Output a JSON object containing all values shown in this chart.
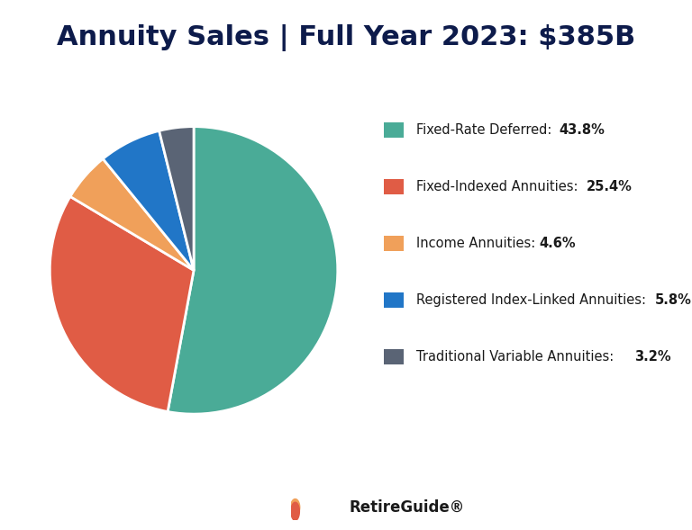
{
  "title": "Annuity Sales | Full Year 2023: $385B",
  "title_color": "#0d1b4b",
  "title_fontsize": 22,
  "background_color": "#ffffff",
  "slices": [
    {
      "label": "Fixed-Rate Deferred",
      "pct": 43.8,
      "color": "#4aab97"
    },
    {
      "label": "Fixed-Indexed Annuities",
      "pct": 25.4,
      "color": "#e05c45"
    },
    {
      "label": "Income Annuities",
      "pct": 4.6,
      "color": "#f0a05a"
    },
    {
      "label": "Registered Index-Linked Annuities",
      "pct": 5.8,
      "color": "#2176c7"
    },
    {
      "label": "Traditional Variable Annuities",
      "pct": 3.2,
      "color": "#5a6475"
    }
  ],
  "legend_fontsize": 10.5,
  "startangle": 90,
  "footer_text": "RetireGuide®",
  "footer_fontsize": 12,
  "footer_icon_color": "#e05c45"
}
